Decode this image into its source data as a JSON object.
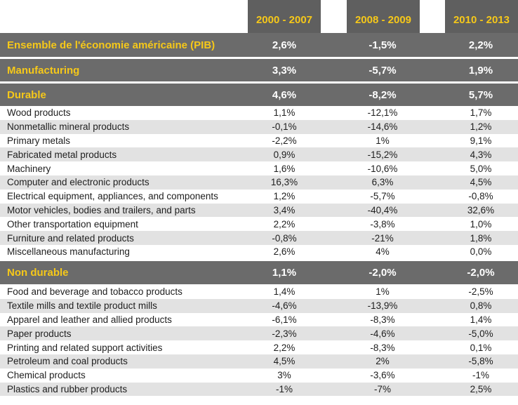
{
  "headers": [
    "2000 - 2007",
    "2008 - 2009",
    "2010 - 2013"
  ],
  "summary": [
    {
      "label": "Ensemble de l'économie américaine (PIB)",
      "values": [
        "2,6%",
        "-1,5%",
        "2,2%"
      ]
    },
    {
      "label": "Manufacturing",
      "values": [
        "3,3%",
        "-5,7%",
        "1,9%"
      ]
    },
    {
      "label": "Durable",
      "values": [
        "4,6%",
        "-8,2%",
        "5,7%"
      ]
    }
  ],
  "durable_rows": [
    {
      "label": "Wood products",
      "values": [
        "1,1%",
        "-12,1%",
        "1,7%"
      ]
    },
    {
      "label": "Nonmetallic mineral products",
      "values": [
        "-0,1%",
        "-14,6%",
        "1,2%"
      ]
    },
    {
      "label": "Primary metals",
      "values": [
        "-2,2%",
        "1%",
        "9,1%"
      ]
    },
    {
      "label": "Fabricated metal products",
      "values": [
        "0,9%",
        "-15,2%",
        "4,3%"
      ]
    },
    {
      "label": "Machinery",
      "values": [
        "1,6%",
        "-10,6%",
        "5,0%"
      ]
    },
    {
      "label": "Computer and electronic products",
      "values": [
        "16,3%",
        "6,3%",
        "4,5%"
      ]
    },
    {
      "label": "Electrical equipment, appliances, and components",
      "values": [
        "1,2%",
        "-5,7%",
        "-0,8%"
      ]
    },
    {
      "label": "Motor vehicles, bodies and trailers, and parts",
      "values": [
        "3,4%",
        "-40,4%",
        "32,6%"
      ]
    },
    {
      "label": "Other transportation equipment",
      "values": [
        "2,2%",
        "-3,8%",
        "1,0%"
      ]
    },
    {
      "label": "Furniture and related products",
      "values": [
        "-0,8%",
        "-21%",
        "1,8%"
      ]
    },
    {
      "label": "Miscellaneous manufacturing",
      "values": [
        "2,6%",
        "4%",
        "0,0%"
      ]
    }
  ],
  "nondurable": {
    "label": "Non durable",
    "values": [
      "1,1%",
      "-2,0%",
      "-2,0%"
    ]
  },
  "nondurable_rows": [
    {
      "label": "Food and beverage and tobacco products",
      "values": [
        "1,4%",
        "1%",
        "-2,5%"
      ]
    },
    {
      "label": "Textile mills and textile product mills",
      "values": [
        "-4,6%",
        "-13,9%",
        "0,8%"
      ]
    },
    {
      "label": "Apparel and leather and allied products",
      "values": [
        "-6,1%",
        "-8,3%",
        "1,4%"
      ]
    },
    {
      "label": "Paper products",
      "values": [
        "-2,3%",
        "-4,6%",
        "-5,0%"
      ]
    },
    {
      "label": "Printing and related support activities",
      "values": [
        "2,2%",
        "-8,3%",
        "0,1%"
      ]
    },
    {
      "label": "Petroleum and coal products",
      "values": [
        "4,5%",
        "2%",
        "-5,8%"
      ]
    },
    {
      "label": "Chemical products",
      "values": [
        "3%",
        "-3,6%",
        "-1%"
      ]
    },
    {
      "label": "Plastics and rubber products",
      "values": [
        "-1%",
        "-7%",
        "2,5%"
      ]
    }
  ],
  "colors": {
    "band": "#6b6b6b",
    "accent": "#f6c819",
    "stripe": "#e2e2e2"
  }
}
